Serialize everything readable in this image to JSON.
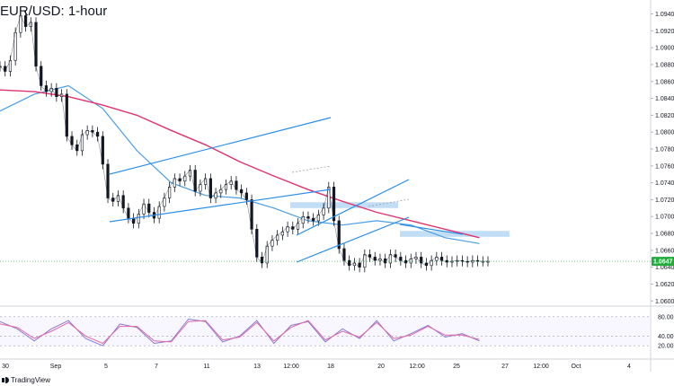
{
  "header": {
    "title": "EUR/USD: 1-hour"
  },
  "footer": {
    "brand": "TradingView"
  },
  "colors": {
    "candle": "#131722",
    "sma_fast": "#4a9de3",
    "sma_slow": "#e0336f",
    "channel": "#2d8fe8",
    "zone": "#b7d8f5",
    "rsi": "#8b79d6",
    "rsi_alt": "#e06aa0",
    "last_price": "#22ab3c"
  },
  "chart_data": [
    {
      "type": "line",
      "title": "EUR/USD: 1-hour",
      "y_ticks": [
        "1.09400",
        "1.09200",
        "1.09000",
        "1.08800",
        "1.08600",
        "1.08400",
        "1.08200",
        "1.08000",
        "1.07800",
        "1.07600",
        "1.07400",
        "1.07200",
        "1.07000",
        "1.06800",
        "1.06600",
        "1.06400",
        "1.06200",
        "1.06000"
      ],
      "ylim": [
        1.0595,
        1.0948
      ],
      "x_ticks": [
        "30",
        "Sep",
        "5",
        "7",
        "11",
        "13",
        "12:00",
        "18",
        "20",
        "12:00",
        "25",
        "27",
        "12:00",
        "Oct",
        "4"
      ],
      "last_price": "1.0647",
      "series": [
        {
          "x": [
            0,
            3,
            6,
            9,
            12,
            15,
            18,
            21,
            24,
            27,
            30,
            33,
            36,
            39,
            42,
            45,
            48,
            51,
            54,
            57,
            60,
            63,
            66,
            69,
            72,
            75,
            78,
            81,
            84,
            87,
            90,
            93,
            96,
            99,
            102,
            105,
            108,
            111,
            114,
            117,
            120,
            123,
            126,
            129,
            132,
            135,
            138,
            141,
            144,
            147,
            150,
            153,
            156,
            159,
            162,
            165,
            168,
            171,
            174,
            177,
            180,
            183,
            186,
            189,
            192,
            195,
            198,
            201,
            204,
            207,
            210,
            213,
            216,
            219,
            222,
            225,
            228,
            231,
            234,
            237,
            240,
            243,
            246,
            249,
            252,
            255,
            258,
            261,
            264,
            267,
            270,
            273,
            276,
            279,
            282,
            285
          ],
          "values": [
            1.0878,
            1.0872,
            1.0885,
            1.0918,
            1.0938,
            1.0925,
            1.093,
            1.0878,
            1.0855,
            1.0848,
            1.0852,
            1.0842,
            1.0845,
            1.0795,
            1.0785,
            1.0778,
            1.0797,
            1.0802,
            1.08,
            1.0795,
            1.0762,
            1.0722,
            1.0718,
            1.0725,
            1.071,
            1.0698,
            1.0692,
            1.0703,
            1.0715,
            1.0705,
            1.0698,
            1.0712,
            1.0722,
            1.0735,
            1.0745,
            1.0742,
            1.0748,
            1.0755,
            1.073,
            1.0738,
            1.0745,
            1.0722,
            1.0728,
            1.0732,
            1.0738,
            1.0742,
            1.0732,
            1.0728,
            1.072,
            1.0685,
            1.0652,
            1.0645,
            1.0665,
            1.0672,
            1.0678,
            1.0682,
            1.0688,
            1.0685,
            1.0692,
            1.07,
            1.0698,
            1.0695,
            1.0702,
            1.071,
            1.0735,
            1.0695,
            1.0662,
            1.0648,
            1.0642,
            1.0645,
            1.064,
            1.0655,
            1.0652,
            1.0648,
            1.065,
            1.0645,
            1.0655,
            1.0652,
            1.0648,
            1.0645,
            1.065,
            1.0652,
            1.0645,
            1.0642,
            1.0648,
            1.0652,
            1.0648,
            1.0646,
            1.0647,
            1.0648,
            1.0647,
            1.0646,
            1.0648,
            1.0647,
            1.0647,
            1.0647
          ]
        },
        {
          "x": [
            0,
            20,
            40,
            60,
            80,
            100,
            120,
            140,
            160,
            180,
            200,
            220,
            240,
            260,
            280
          ],
          "values": [
            1.0825,
            1.0845,
            1.0855,
            1.0828,
            1.0778,
            1.074,
            1.0725,
            1.0722,
            1.071,
            1.0695,
            1.069,
            1.0695,
            1.069,
            1.0675,
            1.0668
          ]
        },
        {
          "x": [
            0,
            20,
            40,
            60,
            80,
            100,
            120,
            140,
            160,
            180,
            200,
            220,
            240,
            260,
            280
          ],
          "values": [
            1.085,
            1.0848,
            1.0842,
            1.0832,
            1.082,
            1.0802,
            1.0785,
            1.0765,
            1.0748,
            1.0732,
            1.0718,
            1.0705,
            1.0695,
            1.0685,
            1.0675
          ]
        }
      ]
    },
    {
      "type": "line",
      "y_ticks": [
        "80.00",
        "40.00",
        "20.00"
      ],
      "ylim": [
        0,
        100
      ],
      "series": [
        {
          "x": [
            0,
            10,
            20,
            30,
            40,
            50,
            60,
            70,
            80,
            90,
            100,
            110,
            120,
            130,
            140,
            150,
            160,
            170,
            180,
            190,
            200,
            210,
            220,
            230,
            240,
            250,
            260,
            270,
            280
          ],
          "values": [
            70,
            55,
            30,
            55,
            72,
            35,
            20,
            65,
            58,
            25,
            30,
            75,
            70,
            28,
            40,
            72,
            25,
            62,
            70,
            28,
            55,
            35,
            72,
            30,
            45,
            62,
            38,
            45,
            30
          ]
        },
        {
          "x": [
            0,
            10,
            20,
            30,
            40,
            50,
            60,
            70,
            80,
            90,
            100,
            110,
            120,
            130,
            140,
            150,
            160,
            170,
            180,
            190,
            200,
            210,
            220,
            230,
            240,
            250,
            260,
            270,
            280
          ],
          "values": [
            65,
            58,
            35,
            50,
            68,
            40,
            25,
            60,
            60,
            30,
            28,
            70,
            72,
            32,
            38,
            68,
            30,
            58,
            72,
            32,
            50,
            38,
            68,
            35,
            42,
            60,
            42,
            42,
            33
          ]
        }
      ]
    }
  ]
}
